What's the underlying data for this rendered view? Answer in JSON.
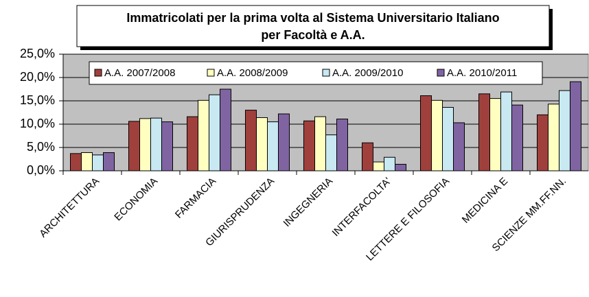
{
  "chart_data": {
    "type": "bar",
    "title": [
      "Immatricolati per la prima volta al Sistema Universitario Italiano",
      "per Facoltà e A.A."
    ],
    "categories": [
      "ARCHITETTURA",
      "ECONOMIA",
      "FARMACIA",
      "GIURISPRUDENZA",
      "INGEGNERIA",
      "INTERFACOLTA'",
      "LETTERE E FILOSOFIA",
      "MEDICINA E",
      "SCIENZE MM.FF.NN."
    ],
    "series": [
      {
        "name": "A.A. 2007/2008",
        "color": "#a0403d",
        "values": [
          3.7,
          10.6,
          11.6,
          13.0,
          10.7,
          6.0,
          16.1,
          16.5,
          12.0
        ]
      },
      {
        "name": "A.A. 2008/2009",
        "color": "#ffffc0",
        "values": [
          3.9,
          11.2,
          15.1,
          11.4,
          11.6,
          1.9,
          15.1,
          15.5,
          14.3
        ]
      },
      {
        "name": "A.A. 2009/2010",
        "color": "#c8e8f2",
        "values": [
          3.4,
          11.3,
          16.3,
          10.5,
          7.7,
          2.9,
          13.6,
          16.9,
          17.2
        ]
      },
      {
        "name": "A.A. 2010/2011",
        "color": "#8064a2",
        "values": [
          3.9,
          10.5,
          17.5,
          12.2,
          11.1,
          1.4,
          10.3,
          14.1,
          19.1
        ]
      }
    ],
    "ylim": [
      0,
      25
    ],
    "yticks": [
      {
        "value": 0,
        "label": "0,0%"
      },
      {
        "value": 5,
        "label": "5,0%"
      },
      {
        "value": 10,
        "label": "10,0%"
      },
      {
        "value": 15,
        "label": "15,0%"
      },
      {
        "value": 20,
        "label": "20,0%"
      },
      {
        "value": 25,
        "label": "25,0%"
      }
    ],
    "grid": true,
    "legend": "top"
  }
}
